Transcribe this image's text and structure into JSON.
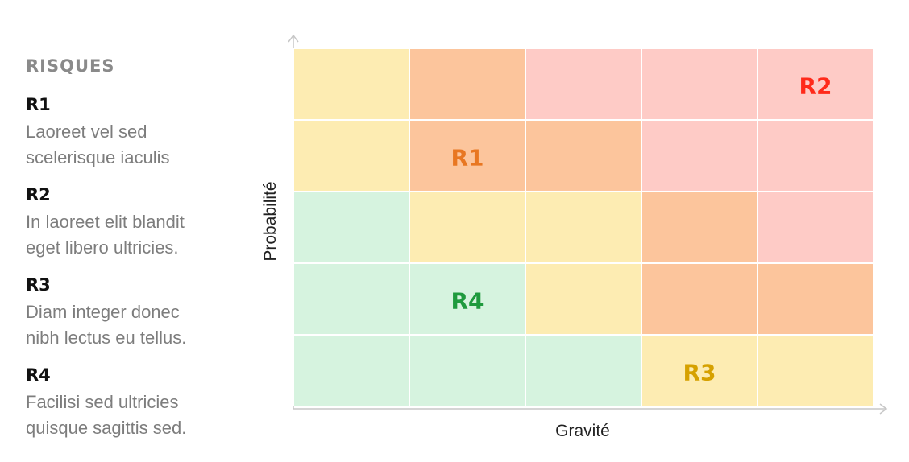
{
  "legend": {
    "title": "RISQUES",
    "items": [
      {
        "id": "R1",
        "desc_line1": "Laoreet vel sed",
        "desc_line2": "scelerisque iaculis"
      },
      {
        "id": "R2",
        "desc_line1": "In laoreet elit blandit",
        "desc_line2": "eget libero ultricies."
      },
      {
        "id": "R3",
        "desc_line1": "Diam integer donec",
        "desc_line2": "nibh lectus eu tellus."
      },
      {
        "id": "R4",
        "desc_line1": "Facilisi sed ultricies",
        "desc_line2": "quisque sagittis sed."
      }
    ]
  },
  "axes": {
    "x_label": "Gravité",
    "y_label": "Probabilité"
  },
  "colors": {
    "green": "#d6f3df",
    "yellow": "#fdecb2",
    "orange": "#fcc59c",
    "red": "#fecbc6",
    "axis": "#c7c7c7"
  },
  "matrix": {
    "rows": [
      [
        "yellow",
        "orange",
        "red",
        "red",
        "red"
      ],
      [
        "yellow",
        "orange",
        "orange",
        "red",
        "red"
      ],
      [
        "green",
        "yellow",
        "yellow",
        "orange",
        "red"
      ],
      [
        "green",
        "green",
        "yellow",
        "orange",
        "orange"
      ],
      [
        "green",
        "green",
        "green",
        "yellow",
        "yellow"
      ]
    ]
  },
  "risks": [
    {
      "label": "R1",
      "gravity": 2,
      "probability": 4,
      "color": "#e87722"
    },
    {
      "label": "R2",
      "gravity": 5,
      "probability": 5,
      "color": "#ff2a1a"
    },
    {
      "label": "R3",
      "gravity": 4,
      "probability": 1,
      "color": "#d6a100"
    },
    {
      "label": "R4",
      "gravity": 2,
      "probability": 2,
      "color": "#1f9a3e"
    }
  ]
}
